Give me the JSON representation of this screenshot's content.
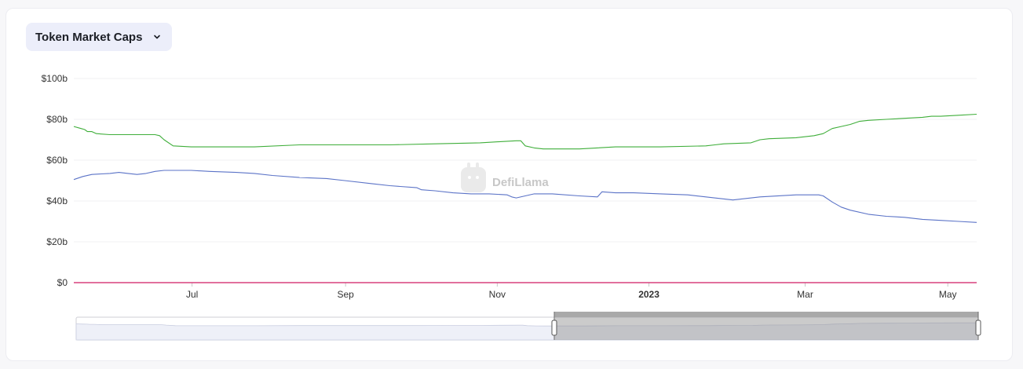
{
  "header": {
    "dropdown_label": "Token Market Caps",
    "chevron_icon": "chevron-down-icon"
  },
  "watermark": {
    "text": "DefiLlama",
    "logo_icon": "defillama-logo-icon"
  },
  "colors": {
    "stablecoin_a": "#3fae3a",
    "stablecoin_b": "#5b73c7",
    "baseline": "#d7417d",
    "grid": "#f0f0f3",
    "axis_text": "#333333"
  },
  "chart_data": {
    "type": "line",
    "y_ticks": [
      "$0",
      "$20b",
      "$40b",
      "$60b",
      "$80b",
      "$100b"
    ],
    "ylim": [
      0,
      100
    ],
    "y_unit": "billion USD",
    "x_ticks": [
      "Jul",
      "Sep",
      "Nov",
      "2023",
      "Mar",
      "May"
    ],
    "x_tick_positions": [
      0.131,
      0.301,
      0.469,
      0.637,
      0.81,
      0.968
    ],
    "grid": true,
    "series": [
      {
        "color": "#3fae3a",
        "x": [
          0,
          0.008,
          0.012,
          0.015,
          0.02,
          0.025,
          0.04,
          0.06,
          0.08,
          0.09,
          0.095,
          0.1,
          0.11,
          0.13,
          0.15,
          0.18,
          0.2,
          0.25,
          0.3,
          0.35,
          0.4,
          0.45,
          0.47,
          0.49,
          0.495,
          0.5,
          0.51,
          0.52,
          0.56,
          0.6,
          0.65,
          0.7,
          0.71,
          0.72,
          0.75,
          0.76,
          0.77,
          0.8,
          0.82,
          0.83,
          0.84,
          0.85,
          0.86,
          0.87,
          0.88,
          0.9,
          0.92,
          0.94,
          0.95,
          0.96,
          0.98,
          1.0
        ],
        "values": [
          76.5,
          75.5,
          75,
          74,
          74,
          73,
          72.5,
          72.5,
          72.5,
          72.5,
          72,
          70,
          67,
          66.5,
          66.5,
          66.5,
          66.5,
          67.5,
          67.5,
          67.5,
          68,
          68.5,
          69,
          69.5,
          69.5,
          67,
          66,
          65.5,
          65.5,
          66.5,
          66.5,
          67,
          67.5,
          68,
          68.5,
          70,
          70.5,
          71,
          72,
          73,
          75.5,
          76.5,
          77.5,
          79,
          79.5,
          80,
          80.5,
          81,
          81.5,
          81.5,
          82,
          82.5
        ]
      },
      {
        "color": "#5b73c7",
        "x": [
          0,
          0.01,
          0.02,
          0.04,
          0.05,
          0.06,
          0.07,
          0.08,
          0.09,
          0.1,
          0.11,
          0.13,
          0.15,
          0.18,
          0.2,
          0.22,
          0.25,
          0.28,
          0.3,
          0.33,
          0.35,
          0.38,
          0.385,
          0.4,
          0.42,
          0.44,
          0.46,
          0.48,
          0.485,
          0.49,
          0.5,
          0.51,
          0.53,
          0.56,
          0.58,
          0.585,
          0.6,
          0.62,
          0.65,
          0.68,
          0.7,
          0.73,
          0.76,
          0.8,
          0.825,
          0.83,
          0.84,
          0.85,
          0.86,
          0.88,
          0.9,
          0.92,
          0.94,
          0.96,
          0.98,
          1.0
        ],
        "values": [
          50.5,
          52,
          53,
          53.5,
          54,
          53.5,
          53,
          53.5,
          54.5,
          55,
          55,
          55,
          54.5,
          54,
          53.5,
          52.5,
          51.5,
          51,
          50,
          48.5,
          47.5,
          46.5,
          45.5,
          45,
          44,
          43.5,
          43.5,
          43,
          42,
          41.5,
          42.5,
          43.5,
          43.5,
          42.5,
          42,
          44.5,
          44,
          44,
          43.5,
          43,
          42,
          40.5,
          42,
          43,
          43,
          42.5,
          39.5,
          37,
          35.5,
          33.5,
          32.5,
          32,
          31,
          30.5,
          30,
          29.5
        ]
      },
      {
        "color": "#d7417d",
        "x": [
          0,
          1
        ],
        "values": [
          0,
          0
        ]
      }
    ]
  }
}
